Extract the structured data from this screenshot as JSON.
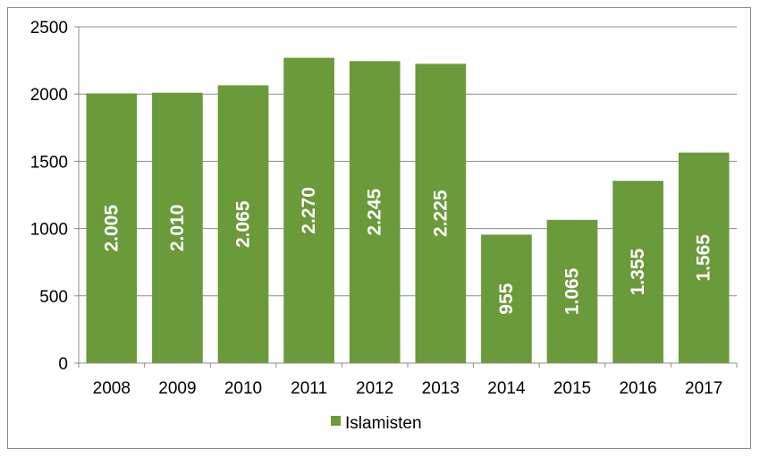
{
  "chart_data": {
    "type": "bar",
    "categories": [
      "2008",
      "2009",
      "2010",
      "2011",
      "2012",
      "2013",
      "2014",
      "2015",
      "2016",
      "2017"
    ],
    "series": [
      {
        "name": "Islamisten",
        "values": [
          2005,
          2010,
          2065,
          2270,
          2245,
          2225,
          955,
          1065,
          1355,
          1565
        ],
        "labels": [
          "2.005",
          "2.010",
          "2.065",
          "2.270",
          "2.245",
          "2.225",
          "955",
          "1.065",
          "1.355",
          "1.565"
        ],
        "color": "#6a9a3a"
      }
    ],
    "y_ticks": [
      "0",
      "500",
      "1000",
      "1500",
      "2000",
      "2500"
    ],
    "ylim": [
      0,
      2500
    ],
    "grid": true,
    "legend_position": "bottom",
    "data_label_orientation": "vertical"
  }
}
